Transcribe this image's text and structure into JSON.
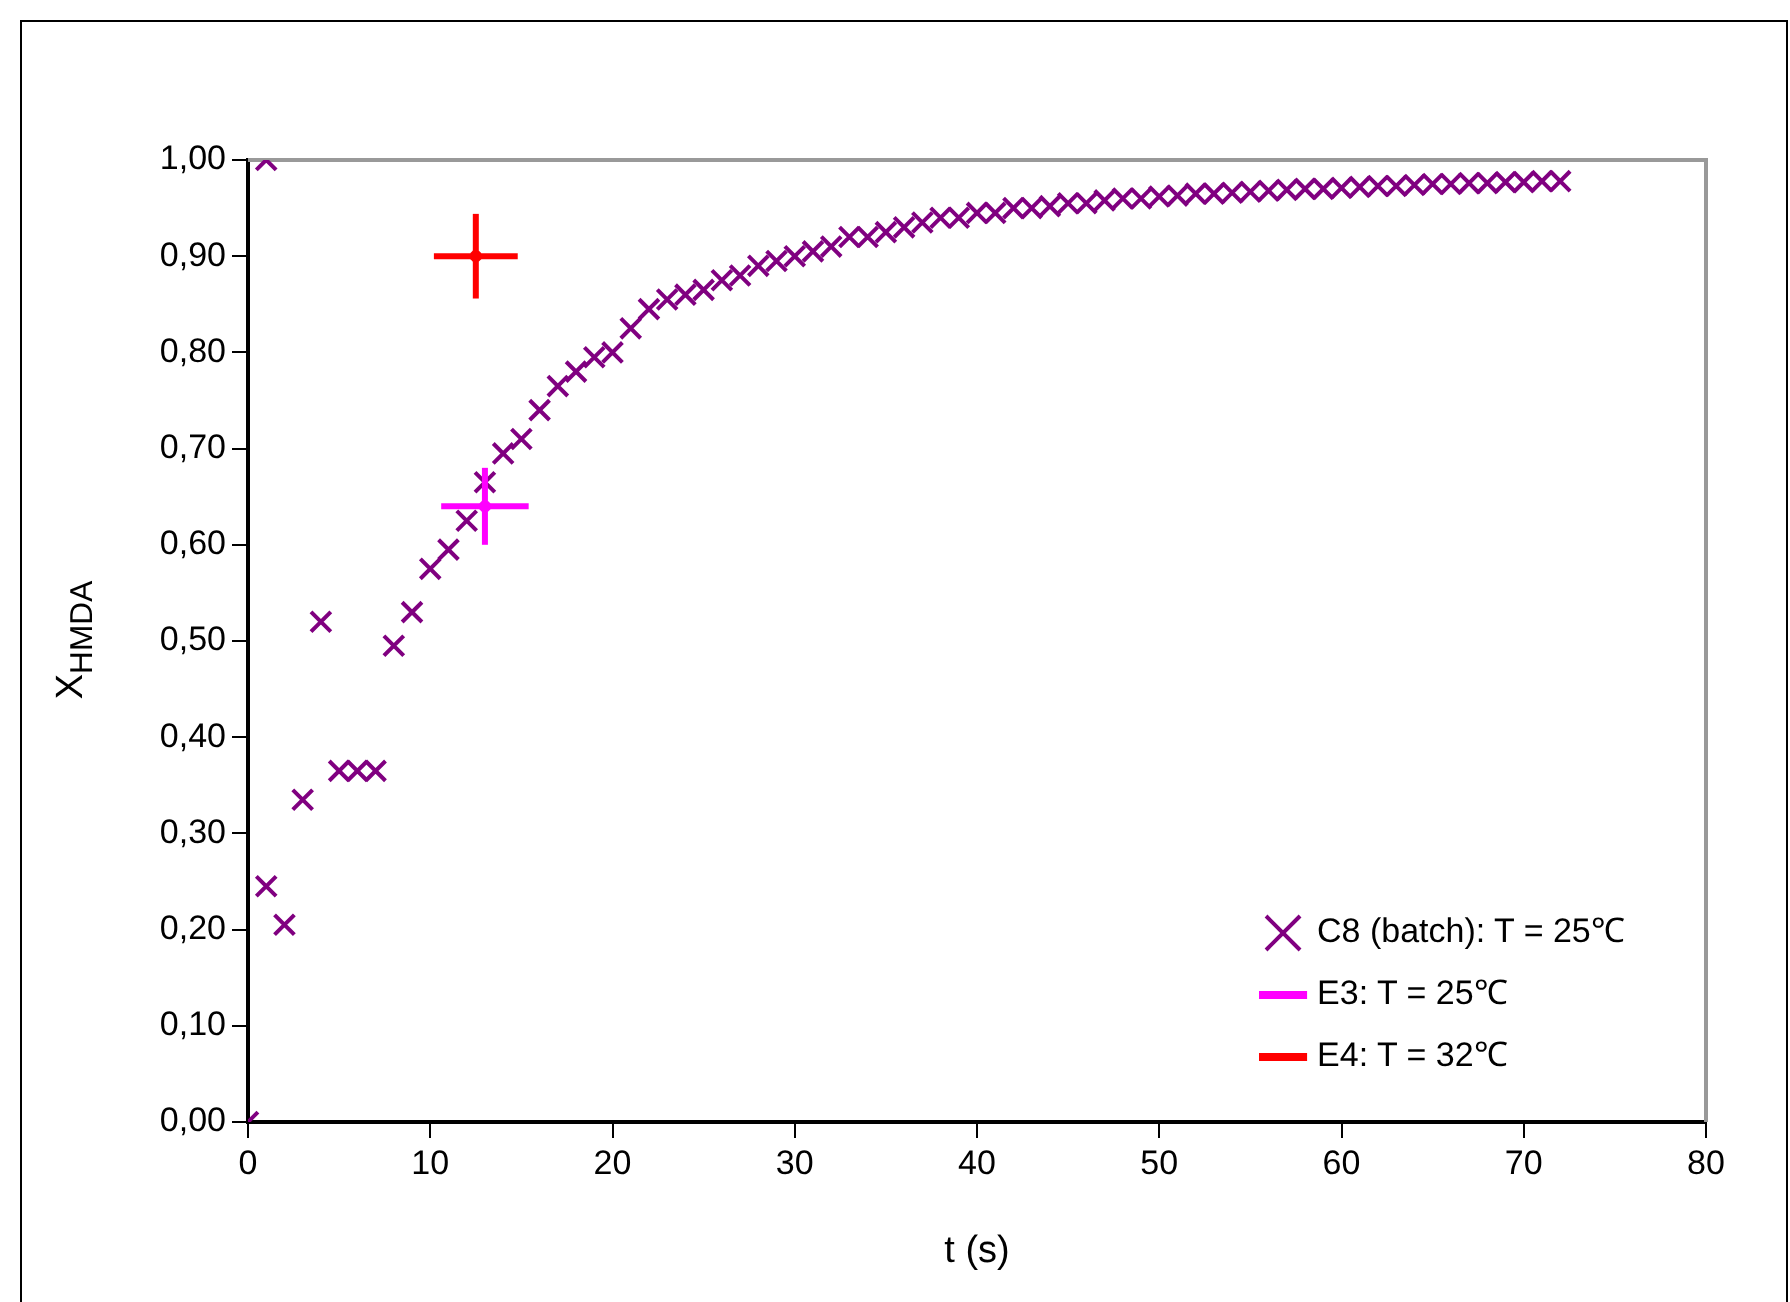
{
  "chart_data": {
    "type": "scatter",
    "xlabel": "t (s)",
    "ylabel": "X$_{HMDA}$",
    "xlim": [
      0,
      80
    ],
    "xticks": [
      0,
      10,
      20,
      30,
      40,
      50,
      60,
      70,
      80
    ],
    "ylim": [
      0,
      1
    ],
    "yticks": [
      {
        "value": 0,
        "label": "0,00"
      },
      {
        "value": 0.1,
        "label": "0,10"
      },
      {
        "value": 0.2,
        "label": "0,20"
      },
      {
        "value": 0.3,
        "label": "0,30"
      },
      {
        "value": 0.4,
        "label": "0,40"
      },
      {
        "value": 0.5,
        "label": "0,50"
      },
      {
        "value": 0.6,
        "label": "0,60"
      },
      {
        "value": 0.7,
        "label": "0,70"
      },
      {
        "value": 0.8,
        "label": "0,80"
      },
      {
        "value": 0.9,
        "label": "0,90"
      },
      {
        "value": 1,
        "label": "1,00"
      }
    ],
    "grid": false,
    "legend": "bottom right",
    "series": [
      {
        "name": "C8 (batch): T = 25℃",
        "color": "#800080",
        "marker": "cross",
        "x": [
          0,
          1,
          1,
          2,
          3,
          4,
          5,
          6,
          7,
          8,
          9,
          10,
          11,
          12,
          13,
          14,
          15,
          16,
          17,
          18,
          19,
          20,
          21,
          22,
          23,
          24,
          25,
          26,
          27,
          28,
          29,
          30,
          31,
          32,
          33,
          34,
          35,
          36,
          37,
          38,
          39,
          40,
          41,
          42,
          43,
          44,
          45,
          46,
          47,
          48,
          49,
          50,
          51,
          52,
          53,
          54,
          55,
          56,
          57,
          58,
          59,
          60,
          61,
          62,
          63,
          64,
          65,
          66,
          67,
          68,
          69,
          70,
          71,
          72
        ],
        "values": [
          0,
          1,
          0.245,
          0.205,
          0.335,
          0.52,
          0.365,
          0.365,
          0.365,
          0.495,
          0.53,
          0.575,
          0.595,
          0.625,
          0.665,
          0.695,
          0.71,
          0.74,
          0.765,
          0.78,
          0.795,
          0.8,
          0.825,
          0.845,
          0.855,
          0.86,
          0.865,
          0.875,
          0.88,
          0.89,
          0.895,
          0.9,
          0.905,
          0.91,
          0.92,
          0.92,
          0.925,
          0.93,
          0.935,
          0.94,
          0.94,
          0.945,
          0.945,
          0.95,
          0.95,
          0.952,
          0.955,
          0.955,
          0.958,
          0.96,
          0.96,
          0.962,
          0.963,
          0.965,
          0.965,
          0.966,
          0.967,
          0.968,
          0.969,
          0.97,
          0.97,
          0.971,
          0.972,
          0.973,
          0.973,
          0.974,
          0.975,
          0.975,
          0.976,
          0.976,
          0.977,
          0.977,
          0.978,
          0.978
        ]
      },
      {
        "name": "E3: T = 25℃",
        "color": "#ff00ff",
        "marker": "cross",
        "x": [
          13
        ],
        "values": [
          0.64
        ],
        "errors": [
          0.04
        ],
        "xerrors": [
          2.4
        ]
      },
      {
        "name": "E4: T = 32℃",
        "color": "#ff0000",
        "marker": "cross",
        "x": [
          12.5
        ],
        "values": [
          0.9
        ],
        "errors": [
          0.044
        ],
        "xerrors": [
          2.3
        ]
      }
    ]
  }
}
